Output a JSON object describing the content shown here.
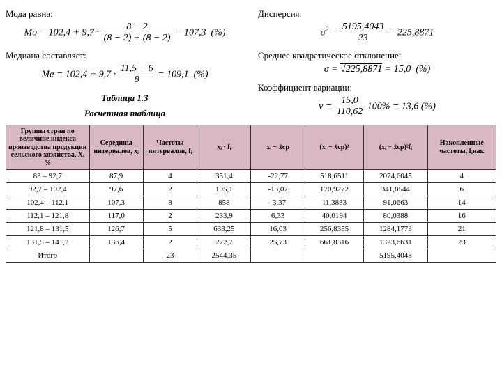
{
  "left": {
    "mode_label": "Мода равна:",
    "mode_formula": "Mo = 102,4 + 9,7 · ((8 − 2) / ((8 − 2) + (8 − 2))) = 107,3  (%)",
    "median_label": "Медиана составляет:",
    "median_formula": "Me = 102,4 + 9,7 · ((11,5 − 6) / 8) = 109,1  (%)",
    "caption_line1": "Таблица 1.3",
    "caption_line2": "Расчетная таблица"
  },
  "right": {
    "disp_label": "Дисперсия:",
    "disp_formula": "σ² = 5195,4043 / 23 = 225,8871",
    "std_label": "Среднее квадратическое отклонение:",
    "std_formula": "σ = √225,8871 = 15,0  (%)",
    "cv_label": "Коэффициент вариации:",
    "cv_formula": "v = (15,0 / 110,62) · 100% = 13,6 (%)"
  },
  "table": {
    "header_bg": "#d8b9c3",
    "columns": [
      "Группы стран по величине индекса производства продукции сельского хозяйства, Xᵢ %",
      "Середины интервалов, xᵢ",
      "Частоты интервалов, fᵢ",
      "xᵢ · fᵢ",
      "xᵢ − x̄ср",
      "(xᵢ − x̄ср)²",
      "(xᵢ − x̄ср)²fᵢ",
      "Накопленные частоты, fᵢнак"
    ],
    "col_widths": [
      "17%",
      "11%",
      "11%",
      "11%",
      "11%",
      "12%",
      "13%",
      "14%"
    ],
    "rows": [
      [
        "83 – 92,7",
        "87,9",
        "4",
        "351,4",
        "-22,77",
        "518,6511",
        "2074,6045",
        "4"
      ],
      [
        "92,7 – 102,4",
        "97,6",
        "2",
        "195,1",
        "-13,07",
        "170,9272",
        "341,8544",
        "6"
      ],
      [
        "102,4 – 112,1",
        "107,3",
        "8",
        "858",
        "-3,37",
        "11,3833",
        "91,0663",
        "14"
      ],
      [
        "112,1 – 121,8",
        "117,0",
        "2",
        "233,9",
        "6,33",
        "40,0194",
        "80,0388",
        "16"
      ],
      [
        "121,8 – 131,5",
        "126,7",
        "5",
        "633,25",
        "16,03",
        "256,8355",
        "1284,1773",
        "21"
      ],
      [
        "131,5 – 141,2",
        "136,4",
        "2",
        "272,7",
        "25,73",
        "661,8316",
        "1323,6631",
        "23"
      ],
      [
        "Итого",
        "",
        "23",
        "2544,35",
        "",
        "",
        "5195,4043",
        ""
      ]
    ]
  }
}
